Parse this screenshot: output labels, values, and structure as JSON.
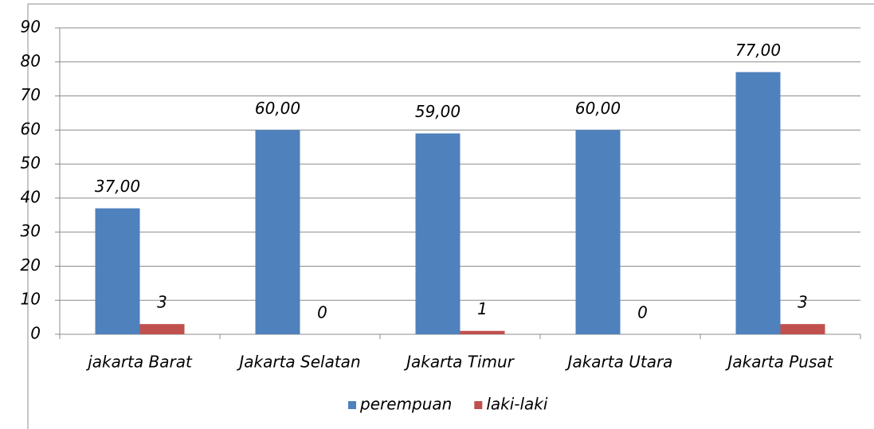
{
  "chart_data": {
    "type": "bar",
    "categories": [
      "jakarta Barat",
      "Jakarta Selatan",
      "Jakarta Timur",
      "Jakarta Utara",
      "Jakarta Pusat"
    ],
    "series": [
      {
        "name": "perempuan",
        "color": "#4f81bd",
        "values": [
          37,
          60,
          59,
          60,
          77
        ],
        "value_labels": [
          "37,00",
          "60,00",
          "59,00",
          "60,00",
          "77,00"
        ]
      },
      {
        "name": "laki-laki",
        "color": "#c0504d",
        "values": [
          3,
          0,
          1,
          0,
          3
        ]
      }
    ],
    "ylim": [
      0,
      90
    ],
    "yticks": [
      0,
      10,
      20,
      30,
      40,
      50,
      60,
      70,
      80,
      90
    ],
    "grid": true,
    "legend": "bottom"
  }
}
